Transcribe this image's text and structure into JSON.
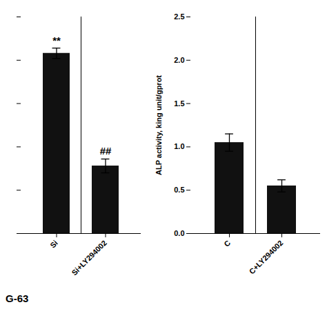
{
  "chart_data": [
    {
      "type": "bar",
      "categories": [
        "Si",
        "Si+LY294002"
      ],
      "values": [
        2.08,
        0.78
      ],
      "errors": [
        0.06,
        0.08
      ],
      "annotations": [
        "**",
        "##"
      ],
      "color": "#111111",
      "ylim": [
        0,
        2.5
      ],
      "yticks": [
        0,
        0.5,
        1,
        1.5,
        2,
        2.5
      ],
      "tick_labels": "x",
      "caption": "G-63"
    },
    {
      "type": "bar",
      "categories": [
        "C",
        "C+LY294002"
      ],
      "values": [
        1.05,
        0.55
      ],
      "errors": [
        0.1,
        0.07
      ],
      "color": "#111111",
      "ylabel": "ALP activity, king unit/gprot",
      "ylim": [
        0,
        2.5
      ],
      "yticks": [
        {
          "value": 0,
          "label": "0.0"
        },
        0.5,
        {
          "value": 1,
          "label": "1.0"
        },
        1.5,
        {
          "value": 2,
          "label": "2.0"
        },
        2.5
      ]
    }
  ]
}
